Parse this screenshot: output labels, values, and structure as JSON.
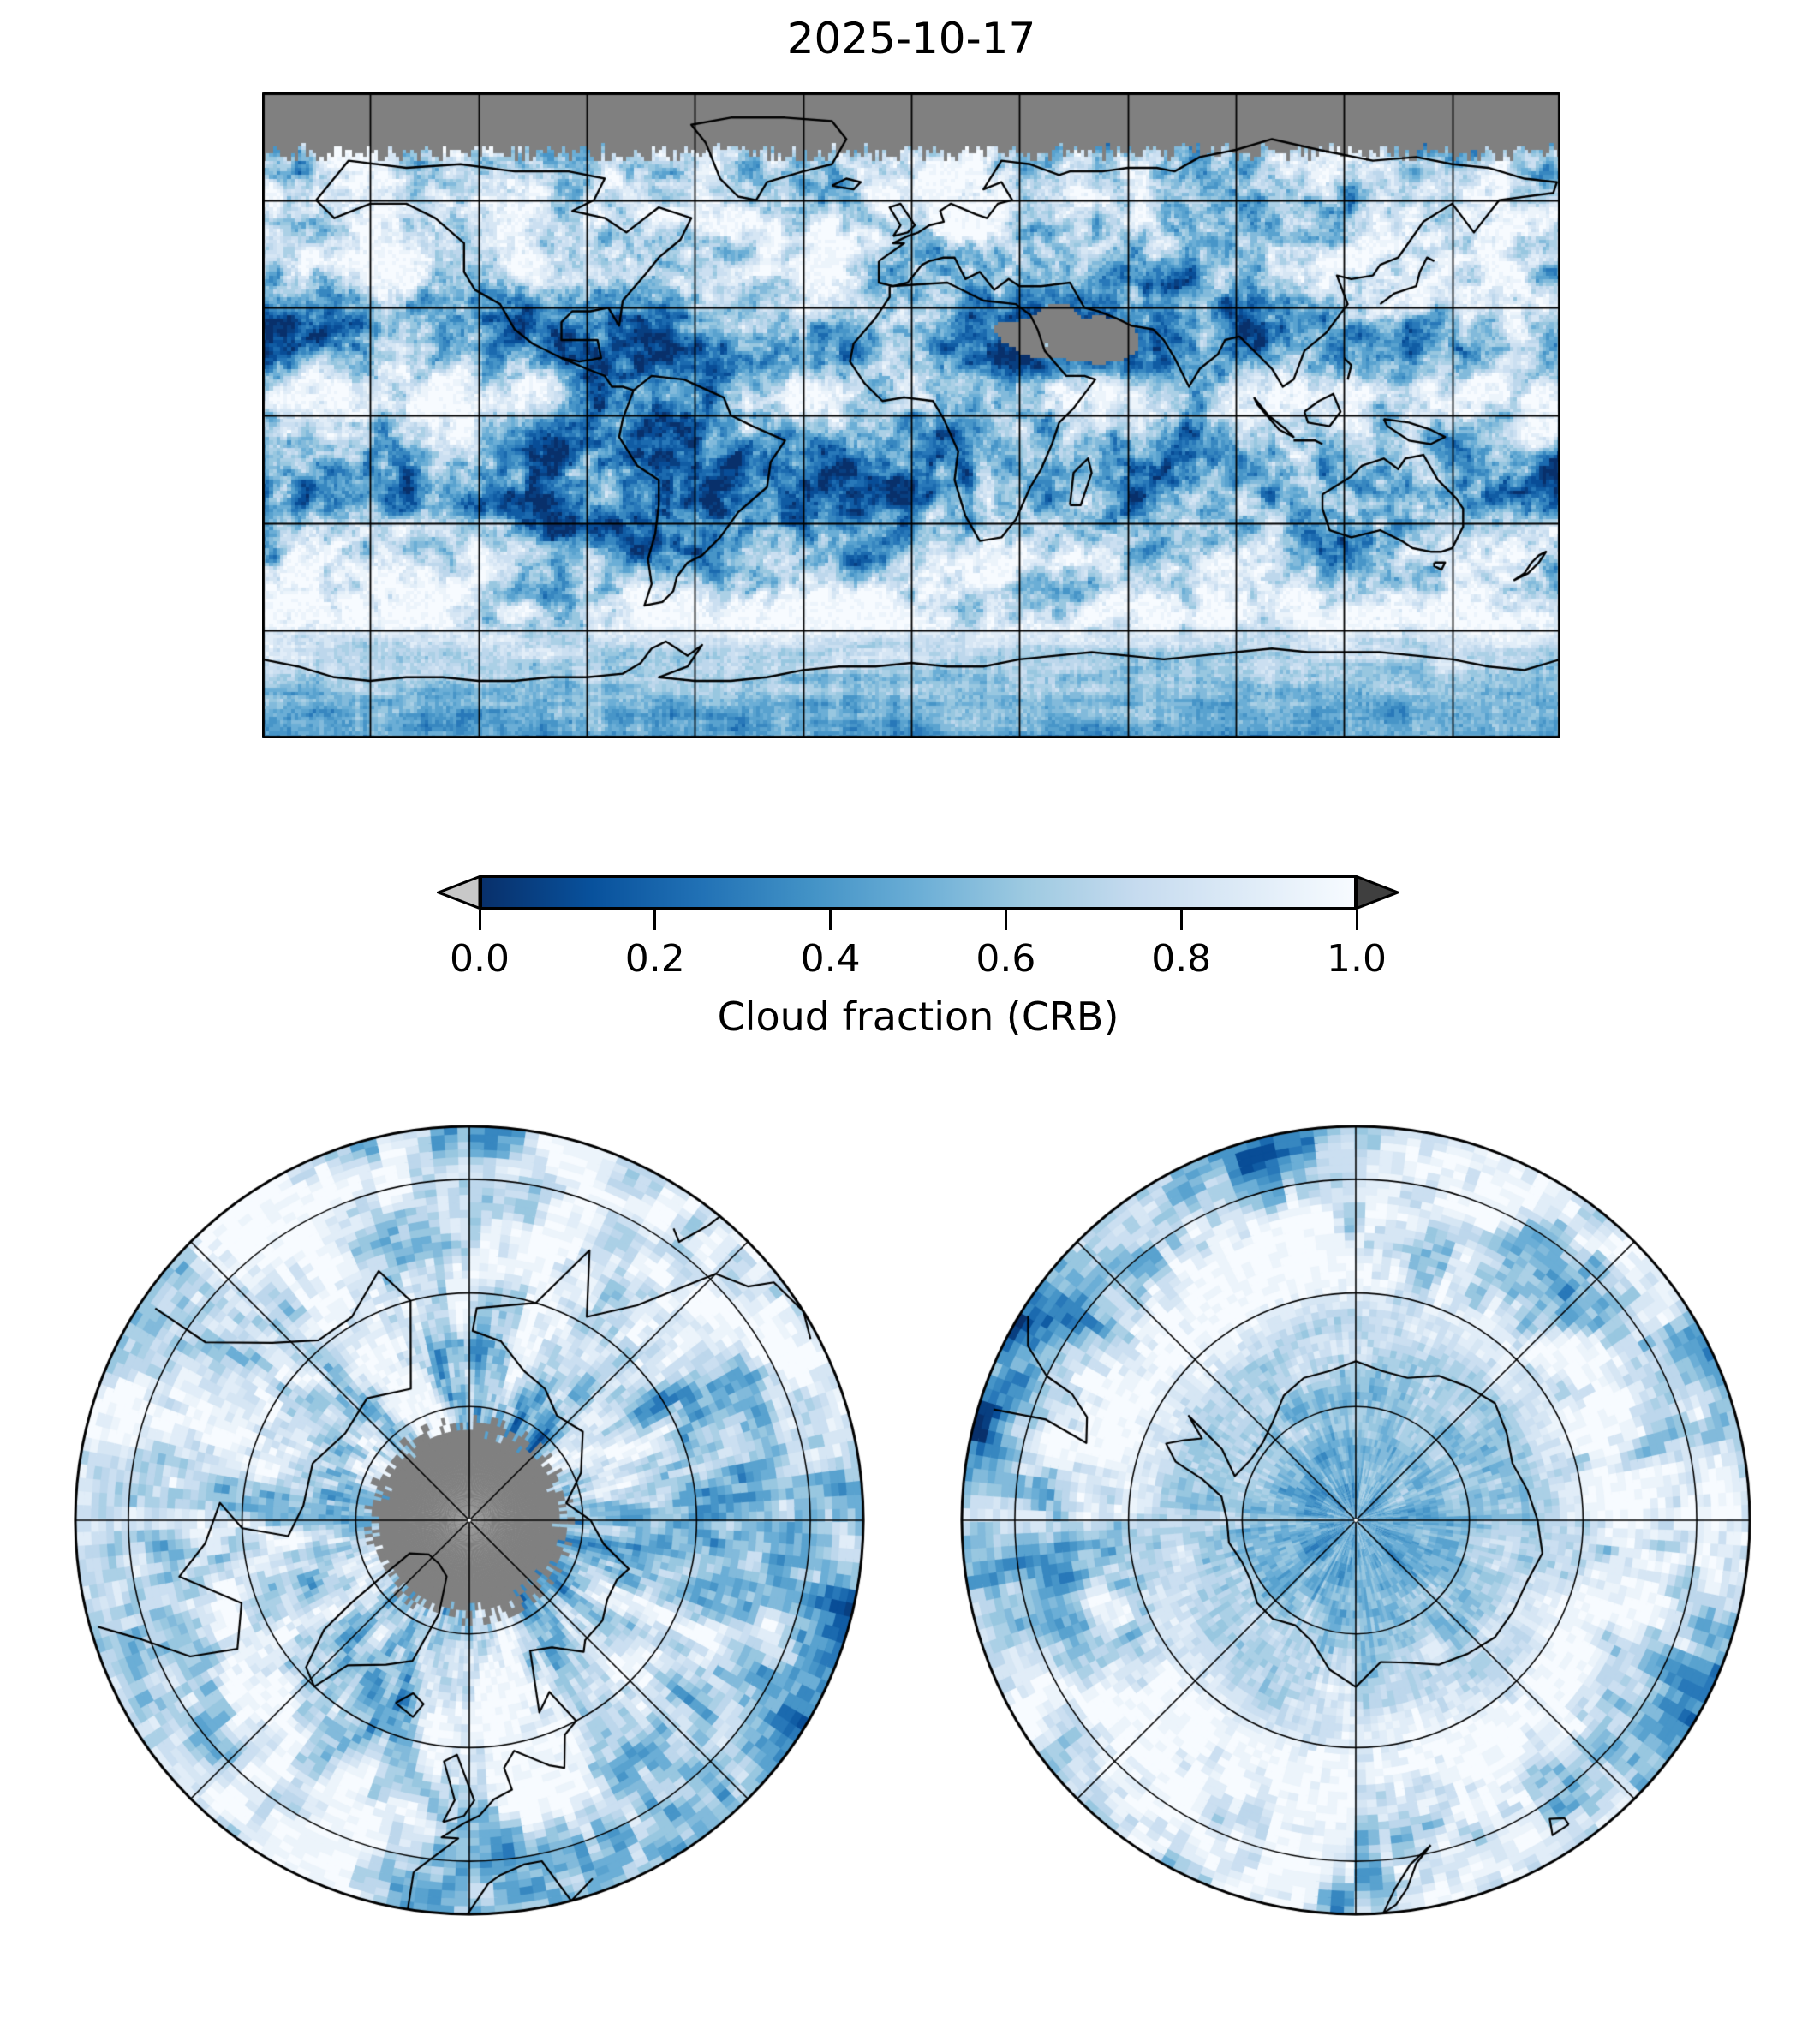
{
  "chart_data": {
    "type": "heatmap",
    "title": "2025-10-17",
    "variable": "Cloud fraction (CRB)",
    "colorbar": {
      "label": "Cloud fraction (CRB)",
      "ticks": [
        {
          "value": 0.0,
          "label": "0.0"
        },
        {
          "value": 0.2,
          "label": "0.2"
        },
        {
          "value": 0.4,
          "label": "0.4"
        },
        {
          "value": 0.6,
          "label": "0.6"
        },
        {
          "value": 0.8,
          "label": "0.8"
        },
        {
          "value": 1.0,
          "label": "1.0"
        }
      ],
      "range": [
        0,
        1
      ],
      "orientation": "horizontal",
      "extend": "both",
      "colormap": "Blues_r",
      "colormap_stops": [
        "#08306b",
        "#08519c",
        "#2171b5",
        "#4292c6",
        "#6baed6",
        "#9ecae1",
        "#c6dbef",
        "#deebf7",
        "#f7fbff"
      ],
      "under_arrow_color": "#c8c8c8",
      "over_arrow_color": "#3f3f3f",
      "outline_color": "#000000"
    },
    "no_data_color": "#808080",
    "gridline_color": "#000000",
    "coastline_color": "#000000",
    "panels": [
      {
        "id": "global",
        "projection": "equirectangular",
        "lon_range": [
          -180,
          180
        ],
        "lat_range": [
          -90,
          90
        ],
        "gridline_spacing_deg": 30,
        "no_data_region": "north of ~74N (polar night) shown gray"
      },
      {
        "id": "arctic",
        "projection": "north_polar_stereographic",
        "boundary_lat": 38,
        "latitude_circles": [
          75,
          60,
          45
        ],
        "meridian_spacing_deg": 45,
        "no_data_region": "pole hole north of ~78N shown gray"
      },
      {
        "id": "antarctic",
        "projection": "south_polar_stereographic",
        "boundary_lat": -38,
        "latitude_circles": [
          -75,
          -60,
          -45
        ],
        "meridian_spacing_deg": 45
      }
    ]
  }
}
